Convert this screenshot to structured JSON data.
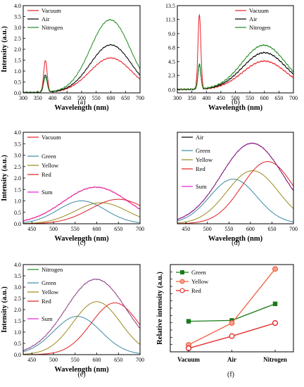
{
  "colors": {
    "vacuum": "#e8202a",
    "air": "#000000",
    "nitrogen": "#1f8a20",
    "green_component": "#3b8aa3",
    "yellow_component": "#9a8a1c",
    "red_component": "#e02020",
    "sum": "#e81ee0",
    "f_green": "#1a7a1a",
    "f_yellow": "#f06040",
    "f_red": "#e02020"
  },
  "chart_data": [
    {
      "id": "a",
      "type": "line",
      "panel_label": "(a)",
      "xlabel": "Wavelength (nm)",
      "ylabel": "Intensity (a.u.)",
      "xlim": [
        300,
        700
      ],
      "ylim": [
        0,
        4.0
      ],
      "xticks": [
        300,
        350,
        400,
        450,
        500,
        550,
        600,
        650,
        700
      ],
      "yticks": [
        "0.0",
        "0.5",
        "1.0",
        "1.5",
        "2.0",
        "2.5",
        "3.0",
        "3.5",
        "4.0"
      ],
      "legend": "top-left",
      "series": [
        {
          "name": "Vacuum",
          "color_key": "vacuum",
          "base": 0.02,
          "peaks": [
            {
              "c": 376,
              "w": 6,
              "a": 1.45
            },
            {
              "c": 600,
              "w": 72,
              "a": 1.58
            }
          ]
        },
        {
          "name": "Air",
          "color_key": "air",
          "base": 0.02,
          "peaks": [
            {
              "c": 376,
              "w": 6,
              "a": 0.8
            },
            {
              "c": 600,
              "w": 70,
              "a": 2.18
            }
          ]
        },
        {
          "name": "Nitrogen",
          "color_key": "nitrogen",
          "base": 0.02,
          "peaks": [
            {
              "c": 376,
              "w": 6,
              "a": 0.7
            },
            {
              "c": 598,
              "w": 68,
              "a": 3.33
            }
          ]
        }
      ]
    },
    {
      "id": "b",
      "type": "line",
      "panel_label": "(b)",
      "xlabel": "Wavelength (nm)",
      "ylabel": "",
      "xlim": [
        300,
        700
      ],
      "ylim": [
        -0.5,
        13.5
      ],
      "xticks": [
        300,
        350,
        400,
        450,
        500,
        550,
        600,
        650,
        700
      ],
      "ytick_values": [
        0.0,
        2.3,
        4.5,
        6.8,
        9.0,
        11.3,
        13.5
      ],
      "yticks": [
        "0.0",
        "2.3",
        "4.5",
        "6.8",
        "9.0",
        "11.3",
        "13.5"
      ],
      "legend": "top-right",
      "series": [
        {
          "name": "Vacuum",
          "color_key": "vacuum",
          "base": 0.05,
          "peaks": [
            {
              "c": 376,
              "w": 5,
              "a": 11.9
            },
            {
              "c": 600,
              "w": 75,
              "a": 4.55
            }
          ]
        },
        {
          "name": "Air",
          "color_key": "air",
          "base": 0.05,
          "peaks": [
            {
              "c": 376,
              "w": 5,
              "a": 3.9
            },
            {
              "c": 600,
              "w": 75,
              "a": 5.9
            }
          ]
        },
        {
          "name": "Nitrogen",
          "color_key": "nitrogen",
          "base": 0.05,
          "peaks": [
            {
              "c": 376,
              "w": 5,
              "a": 4.1
            },
            {
              "c": 598,
              "w": 75,
              "a": 7.1
            }
          ]
        }
      ]
    },
    {
      "id": "c",
      "type": "line",
      "panel_label": "(c)",
      "xlabel": "Wavelength (nm)",
      "ylabel": "Intensity (a.u.)",
      "xlim": [
        430,
        700
      ],
      "ylim": [
        0,
        4.0
      ],
      "xticks": [
        450,
        500,
        550,
        600,
        650,
        700
      ],
      "yticks": [
        "0.0",
        "0.5",
        "1.0",
        "1.5",
        "2.0",
        "2.5",
        "3.0",
        "3.5",
        "4.0"
      ],
      "title_entry": {
        "name": "Vacuum",
        "color_key": "vacuum"
      },
      "series": [
        {
          "name": "Green",
          "color_key": "green_component",
          "base": 0.0,
          "peaks": [
            {
              "c": 565,
              "w": 55,
              "a": 1.0
            }
          ]
        },
        {
          "name": "Yellow",
          "color_key": "yellow_component",
          "base": 0.0,
          "peaks": [
            {
              "c": 610,
              "w": 60,
              "a": 0.92
            }
          ]
        },
        {
          "name": "Red",
          "color_key": "red_component",
          "base": 0.0,
          "peaks": [
            {
              "c": 650,
              "w": 65,
              "a": 1.07
            }
          ]
        },
        {
          "name": "Sum",
          "color_key": "sum",
          "base": 0.0,
          "peaks": [
            {
              "c": 598,
              "w": 75,
              "a": 1.6
            }
          ]
        }
      ]
    },
    {
      "id": "d",
      "type": "line",
      "panel_label": "(d)",
      "xlabel": "Wavelength (nm)",
      "ylabel": "",
      "xlim": [
        430,
        700
      ],
      "ylim": [
        0,
        2.5
      ],
      "xticks": [
        450,
        500,
        550,
        600,
        650,
        700
      ],
      "yticks": [],
      "title_entry": {
        "name": "Air",
        "color_key": "air"
      },
      "series": [
        {
          "name": "Green",
          "color_key": "green_component",
          "base": 0.0,
          "peaks": [
            {
              "c": 560,
              "w": 55,
              "a": 1.22
            }
          ]
        },
        {
          "name": "Yellow",
          "color_key": "yellow_component",
          "base": 0.0,
          "peaks": [
            {
              "c": 605,
              "w": 60,
              "a": 1.45
            }
          ]
        },
        {
          "name": "Red",
          "color_key": "red_component",
          "base": 0.0,
          "peaks": [
            {
              "c": 640,
              "w": 60,
              "a": 1.7
            }
          ]
        },
        {
          "name": "Sum",
          "color_key": "sum",
          "base": 0.0,
          "peaks": [
            {
              "c": 604,
              "w": 72,
              "a": 2.2
            }
          ]
        }
      ]
    },
    {
      "id": "e",
      "type": "line",
      "panel_label": "(e)",
      "xlabel": "Wavelength (nm)",
      "ylabel": "Intensity (a.u.)",
      "xlim": [
        430,
        700
      ],
      "ylim": [
        0,
        4.0
      ],
      "xticks": [
        450,
        500,
        550,
        600,
        650,
        700
      ],
      "yticks": [
        "0.0",
        "0.5",
        "1.0",
        "1.5",
        "2.0",
        "2.5",
        "3.0",
        "3.5",
        "4.0"
      ],
      "title_entry": {
        "name": "Nitrogen",
        "color_key": "nitrogen"
      },
      "series": [
        {
          "name": "Green",
          "color_key": "green_component",
          "base": 0.0,
          "peaks": [
            {
              "c": 555,
              "w": 55,
              "a": 1.7
            }
          ]
        },
        {
          "name": "Yellow",
          "color_key": "yellow_component",
          "base": 0.0,
          "peaks": [
            {
              "c": 600,
              "w": 55,
              "a": 2.35
            }
          ]
        },
        {
          "name": "Red",
          "color_key": "red_component",
          "base": 0.0,
          "peaks": [
            {
              "c": 642,
              "w": 55,
              "a": 2.3
            }
          ]
        },
        {
          "name": "Sum",
          "color_key": "sum",
          "base": 0.0,
          "peaks": [
            {
              "c": 598,
              "w": 70,
              "a": 3.35
            }
          ]
        }
      ]
    },
    {
      "id": "f",
      "type": "line",
      "panel_label": "(f)",
      "xlabel": "",
      "ylabel": "Relative intensity (a.u.)",
      "categories": [
        "Vacuum",
        "Air",
        "Nitrogen"
      ],
      "ylim": [
        0,
        1
      ],
      "legend": "top-left",
      "series": [
        {
          "name": "Green",
          "color_key": "f_green",
          "marker": "square",
          "values": [
            0.35,
            0.36,
            0.55
          ]
        },
        {
          "name": "Yellow",
          "color_key": "f_yellow",
          "marker": "circle-filled",
          "values": [
            0.08,
            0.33,
            0.95
          ]
        },
        {
          "name": "Red",
          "color_key": "f_red",
          "marker": "circle-open",
          "values": [
            0.04,
            0.18,
            0.33
          ]
        }
      ]
    }
  ]
}
